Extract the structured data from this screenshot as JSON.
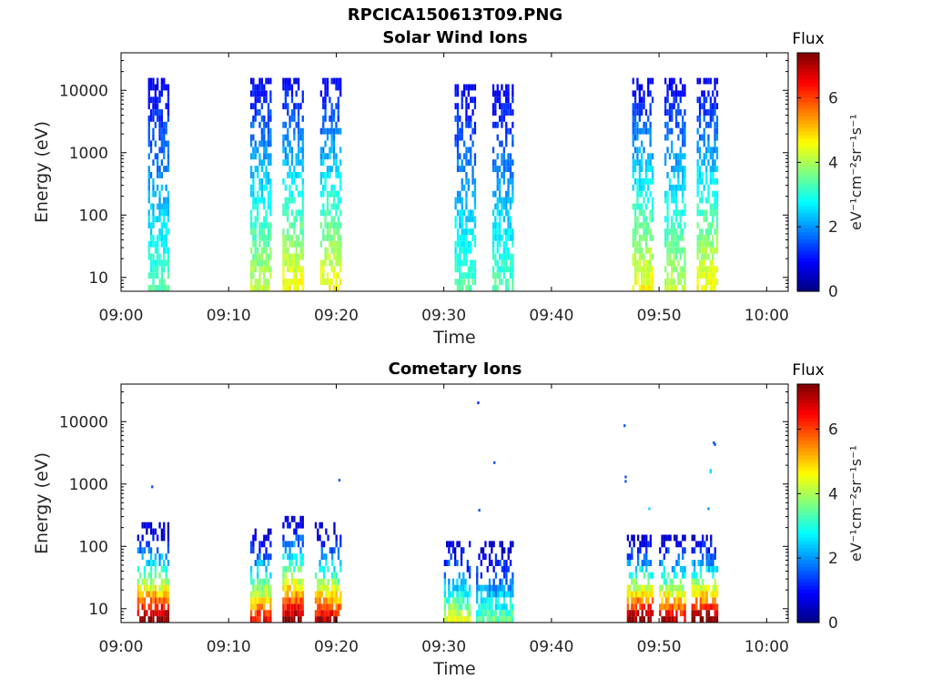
{
  "figure_title": "RPCICA150613T09.PNG",
  "chart_data": [
    {
      "type": "heatmap",
      "title": "Solar Wind Ions",
      "xlabel": "Time",
      "ylabel": "Energy (eV)",
      "yscale": "log",
      "xlim": [
        "09:00",
        "10:02"
      ],
      "ylim": [
        6,
        40000
      ],
      "xticks": [
        "09:00",
        "09:10",
        "09:20",
        "09:30",
        "09:40",
        "09:50",
        "10:00"
      ],
      "yticks": [
        "10",
        "100",
        "1000",
        "10000"
      ],
      "colorbar": {
        "label": "Flux",
        "unit": "eV⁻¹cm⁻²sr⁻¹s⁻¹",
        "ticks": [
          "0",
          "2",
          "4",
          "6"
        ],
        "range": [
          0,
          7.4
        ],
        "colormap": "jet"
      },
      "bursts": [
        {
          "start": "09:02.5",
          "end": "09:04.5",
          "emax": 13000,
          "peak_flux": 3.0
        },
        {
          "start": "09:12.0",
          "end": "09:14.0",
          "emax": 14000,
          "peak_flux": 4.0
        },
        {
          "start": "09:15.0",
          "end": "09:17.0",
          "emax": 14000,
          "peak_flux": 4.5
        },
        {
          "start": "09:18.5",
          "end": "09:20.5",
          "emax": 14000,
          "peak_flux": 4.5
        },
        {
          "start": "09:31.0",
          "end": "09:33.0",
          "emax": 11000,
          "peak_flux": 3.0
        },
        {
          "start": "09:34.5",
          "end": "09:36.5",
          "emax": 11000,
          "peak_flux": 3.0
        },
        {
          "start": "09:47.5",
          "end": "09:49.5",
          "emax": 13000,
          "peak_flux": 4.5
        },
        {
          "start": "09:50.5",
          "end": "09:52.5",
          "emax": 13000,
          "peak_flux": 4.0
        },
        {
          "start": "09:53.5",
          "end": "09:55.5",
          "emax": 13000,
          "peak_flux": 4.5
        }
      ]
    },
    {
      "type": "heatmap",
      "title": "Cometary Ions",
      "xlabel": "Time",
      "ylabel": "Energy (eV)",
      "yscale": "log",
      "xlim": [
        "09:00",
        "10:02"
      ],
      "ylim": [
        6,
        40000
      ],
      "xticks": [
        "09:00",
        "09:10",
        "09:20",
        "09:30",
        "09:40",
        "09:50",
        "10:00"
      ],
      "yticks": [
        "10",
        "100",
        "1000",
        "10000"
      ],
      "colorbar": {
        "label": "Flux",
        "unit": "eV⁻¹cm⁻²sr⁻¹s⁻¹",
        "ticks": [
          "0",
          "2",
          "4",
          "6"
        ],
        "range": [
          0,
          7.4
        ],
        "colormap": "jet"
      },
      "bursts": [
        {
          "start": "09:01.5",
          "end": "09:04.5",
          "emax": 200,
          "peak_flux": 7.0
        },
        {
          "start": "09:12.0",
          "end": "09:14.0",
          "emax": 180,
          "peak_flux": 6.0
        },
        {
          "start": "09:15.0",
          "end": "09:17.0",
          "emax": 300,
          "peak_flux": 7.0
        },
        {
          "start": "09:18.0",
          "end": "09:20.5",
          "emax": 200,
          "peak_flux": 6.5
        },
        {
          "start": "09:30.0",
          "end": "09:32.5",
          "emax": 120,
          "peak_flux": 4.0
        },
        {
          "start": "09:33.0",
          "end": "09:36.5",
          "emax": 120,
          "peak_flux": 3.0
        },
        {
          "start": "09:47.0",
          "end": "09:49.5",
          "emax": 150,
          "peak_flux": 7.0
        },
        {
          "start": "09:50.0",
          "end": "09:52.5",
          "emax": 150,
          "peak_flux": 6.5
        },
        {
          "start": "09:53.0",
          "end": "09:55.5",
          "emax": 150,
          "peak_flux": 7.0
        }
      ],
      "sparse_points": [
        {
          "time": "09:02.8",
          "energy": 900,
          "flux": 1.5
        },
        {
          "time": "09:20.2",
          "energy": 1150,
          "flux": 1.5
        },
        {
          "time": "09:33.1",
          "energy": 20000,
          "flux": 1.2
        },
        {
          "time": "09:34.6",
          "energy": 2200,
          "flux": 1.5
        },
        {
          "time": "09:33.2",
          "energy": 380,
          "flux": 1.5
        },
        {
          "time": "09:46.7",
          "energy": 8600,
          "flux": 1.5
        },
        {
          "time": "09:46.8",
          "energy": 1300,
          "flux": 1.5
        },
        {
          "time": "09:46.8",
          "energy": 1100,
          "flux": 1.5
        },
        {
          "time": "09:54.7",
          "energy": 1650,
          "flux": 2.5
        },
        {
          "time": "09:54.7",
          "energy": 1550,
          "flux": 2.5
        },
        {
          "time": "09:55.0",
          "energy": 4600,
          "flux": 1.5
        },
        {
          "time": "09:55.1",
          "energy": 4300,
          "flux": 1.5
        },
        {
          "time": "09:49.0",
          "energy": 400,
          "flux": 2.5
        },
        {
          "time": "09:54.5",
          "energy": 400,
          "flux": 2.0
        }
      ]
    }
  ]
}
